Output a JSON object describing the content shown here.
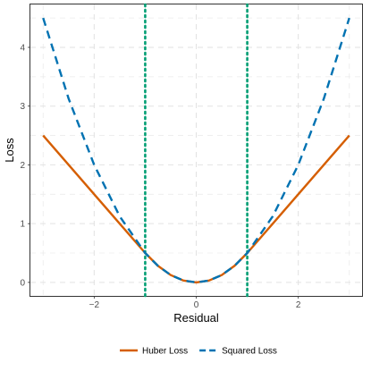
{
  "chart_data": {
    "type": "line",
    "title": "",
    "xlabel": "Residual",
    "ylabel": "Loss",
    "xlim": [
      -3.25,
      3.25
    ],
    "ylim": [
      -0.23,
      4.73
    ],
    "x_ticks": [
      -2,
      0,
      2
    ],
    "x_tick_labels": [
      "−2",
      "0",
      "2"
    ],
    "y_ticks": [
      0,
      1,
      2,
      3,
      4
    ],
    "y_tick_labels": [
      "0",
      "1",
      "2",
      "3",
      "4"
    ],
    "grid": true,
    "grid_style": "dashed",
    "legend_position": "bottom",
    "x": [
      -3.0,
      -2.5,
      -2.0,
      -1.5,
      -1.0,
      -0.75,
      -0.5,
      -0.25,
      0.0,
      0.25,
      0.5,
      0.75,
      1.0,
      1.5,
      2.0,
      2.5,
      3.0
    ],
    "series": [
      {
        "name": "Huber Loss",
        "color": "#D55E00",
        "line_style": "solid",
        "values": [
          2.5,
          2.0,
          1.5,
          1.0,
          0.5,
          0.28125,
          0.125,
          0.03125,
          0.0,
          0.03125,
          0.125,
          0.28125,
          0.5,
          1.0,
          1.5,
          2.0,
          2.5
        ]
      },
      {
        "name": "Squared Loss",
        "color": "#0072B2",
        "line_style": "dashed",
        "values": [
          4.5,
          3.125,
          2.0,
          1.125,
          0.5,
          0.28125,
          0.125,
          0.03125,
          0.0,
          0.03125,
          0.125,
          0.28125,
          0.5,
          1.125,
          2.0,
          3.125,
          4.5
        ]
      }
    ],
    "reference_lines": [
      {
        "axis": "x",
        "value": -1,
        "color": "#009E73",
        "line_style": "dotted"
      },
      {
        "axis": "x",
        "value": 1,
        "color": "#009E73",
        "line_style": "dotted"
      }
    ]
  }
}
